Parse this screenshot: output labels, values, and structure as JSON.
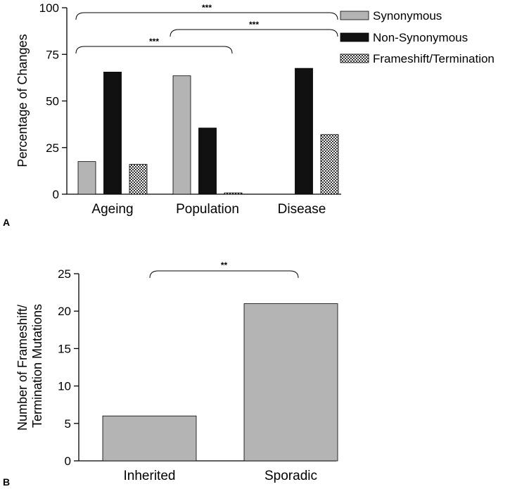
{
  "chart_data": [
    {
      "panel_label": "A",
      "type": "bar",
      "ylabel": "Percentage of Changes",
      "ylim": [
        0,
        100
      ],
      "yticks": [
        0,
        25,
        50,
        75,
        100
      ],
      "categories": [
        "Ageing",
        "Population",
        "Disease"
      ],
      "legend_position": "top-right",
      "series": [
        {
          "name": "Synonymous",
          "values": [
            17.5,
            63.5,
            0
          ],
          "color": "#b4b4b4",
          "pattern": "solid"
        },
        {
          "name": "Non-Synonymous",
          "values": [
            65.5,
            35.5,
            67.5
          ],
          "color": "#111111",
          "pattern": "solid"
        },
        {
          "name": "Frameshift/Termination",
          "values": [
            16,
            0.7,
            32
          ],
          "color": "#ffffff",
          "pattern": "checker"
        }
      ],
      "significance": [
        {
          "from": "Ageing",
          "to": "Disease",
          "label": "***"
        },
        {
          "from": "Population",
          "to": "Disease",
          "label": "***"
        },
        {
          "from": "Ageing",
          "to": "Population",
          "label": "***"
        }
      ]
    },
    {
      "panel_label": "B",
      "type": "bar",
      "ylabel": "Number of Frameshift/ Termination Mutations",
      "ylabel_lines": [
        "Number of Frameshift/",
        "Termination Mutations"
      ],
      "ylim": [
        0,
        25
      ],
      "yticks": [
        0,
        5,
        10,
        15,
        20,
        25
      ],
      "categories": [
        "Inherited",
        "Sporadic"
      ],
      "values": [
        6,
        21
      ],
      "color": "#b4b4b4",
      "significance": [
        {
          "from": "Inherited",
          "to": "Sporadic",
          "label": "**"
        }
      ]
    }
  ]
}
